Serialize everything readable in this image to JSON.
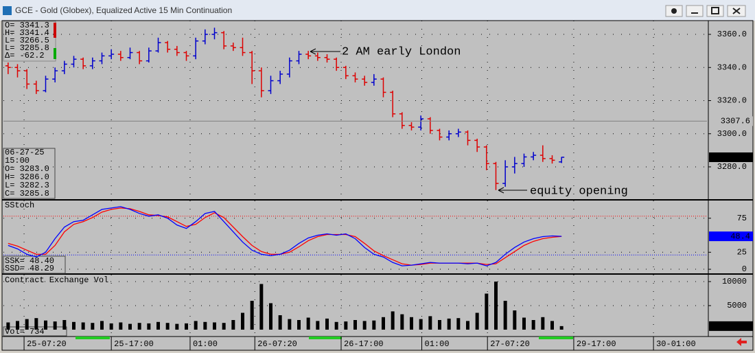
{
  "window": {
    "title": "GCE - Gold (Globex), Equalized Active 15 Min Continuation"
  },
  "time_axis": {
    "xlim": [
      0,
      75
    ],
    "ticks": [
      {
        "value": 2.2,
        "label": "25-07:20"
      },
      {
        "value": 11.5,
        "label": "25-17:00"
      },
      {
        "value": 19.9,
        "label": "01:00"
      },
      {
        "value": 26.8,
        "label": "26-07:20"
      },
      {
        "value": 36.0,
        "label": "26-17:00"
      },
      {
        "value": 44.6,
        "label": "01:00"
      },
      {
        "value": 51.6,
        "label": "27-07:20"
      },
      {
        "value": 60.8,
        "label": "29-17:00"
      },
      {
        "value": 69.3,
        "label": "30-01:00"
      }
    ]
  },
  "chart_data": [
    {
      "type": "ohlc",
      "info": [
        "O= 3341.3",
        "H= 3341.4",
        "L= 3266.5",
        "L= 3285.8",
        "Δ=  -62.2"
      ],
      "bar_readout": [
        "06-27-25",
        "15:00",
        "O=   3283.0",
        "H=   3286.0",
        "L=   3282.3",
        "C=   3285.8"
      ],
      "open": [
        3341,
        3340,
        3338,
        3330,
        3326,
        3333,
        3338,
        3342,
        3345,
        3341,
        3344,
        3347,
        3348,
        3346,
        3349,
        3344,
        3350,
        3355,
        3351,
        3349,
        3347,
        3356,
        3360,
        3361,
        3353,
        3352,
        3349,
        3338,
        3326,
        3332,
        3336,
        3344,
        3348,
        3347,
        3346,
        3345,
        3340,
        3335,
        3333,
        3331,
        3333,
        3325,
        3312,
        3305,
        3304,
        3309,
        3302,
        3298,
        3300,
        3301,
        3296,
        3292,
        3282,
        3270,
        3280,
        3282,
        3286,
        3287,
        3285,
        3283
      ],
      "high": [
        3343,
        3342,
        3339,
        3332,
        3335,
        3340,
        3344,
        3347,
        3346,
        3346,
        3349,
        3351,
        3350,
        3352,
        3350,
        3352,
        3358,
        3356,
        3353,
        3350,
        3358,
        3363,
        3364,
        3362,
        3355,
        3358,
        3350,
        3340,
        3335,
        3338,
        3346,
        3350,
        3350,
        3349,
        3348,
        3346,
        3341,
        3337,
        3335,
        3336,
        3334,
        3326,
        3313,
        3307,
        3311,
        3310,
        3303,
        3302,
        3303,
        3302,
        3297,
        3293,
        3283,
        3284,
        3286,
        3288,
        3289,
        3293,
        3287,
        3286
      ],
      "low": [
        3336,
        3334,
        3327,
        3324,
        3325,
        3331,
        3336,
        3340,
        3339,
        3339,
        3342,
        3345,
        3344,
        3345,
        3342,
        3343,
        3349,
        3349,
        3347,
        3344,
        3345,
        3354,
        3357,
        3351,
        3350,
        3347,
        3330,
        3322,
        3324,
        3330,
        3334,
        3342,
        3345,
        3344,
        3343,
        3338,
        3333,
        3331,
        3329,
        3329,
        3322,
        3310,
        3303,
        3302,
        3302,
        3300,
        3296,
        3296,
        3298,
        3293,
        3289,
        3278,
        3266,
        3268,
        3276,
        3280,
        3284,
        3283,
        3282,
        3282.3
      ],
      "close": [
        3340,
        3338,
        3330,
        3326,
        3333,
        3338,
        3342,
        3345,
        3341,
        3344,
        3347,
        3348,
        3346,
        3349,
        3344,
        3350,
        3355,
        3351,
        3349,
        3347,
        3356,
        3360,
        3361,
        3353,
        3352,
        3349,
        3338,
        3326,
        3332,
        3336,
        3344,
        3348,
        3347,
        3346,
        3345,
        3340,
        3335,
        3333,
        3331,
        3333,
        3325,
        3312,
        3305,
        3304,
        3309,
        3302,
        3298,
        3300,
        3301,
        3296,
        3292,
        3282,
        3270,
        3280,
        3282,
        3286,
        3287,
        3285,
        3284,
        3285.8
      ],
      "up_color": "#0000cc",
      "down_color": "#dd0000",
      "ylim": [
        3260.5,
        3368.3
      ],
      "yticks": [
        {
          "value": 3280,
          "label": "3280.0"
        },
        {
          "value": 3300,
          "label": "3300.0"
        },
        {
          "value": 3320,
          "label": "3320.0"
        },
        {
          "value": 3340,
          "label": "3340.0"
        },
        {
          "value": 3360,
          "label": "3360.0"
        }
      ],
      "reference_line": 3307.6,
      "grid": true,
      "annotations": [
        "2 AM early London",
        "equity opening"
      ]
    },
    {
      "type": "line",
      "title": "SStoch",
      "series": [
        {
          "color": "#0000ff",
          "values": [
            35,
            30,
            22,
            18,
            25,
            45,
            62,
            70,
            72,
            80,
            88,
            90,
            92,
            88,
            82,
            78,
            80,
            75,
            65,
            60,
            70,
            82,
            85,
            70,
            55,
            40,
            28,
            22,
            20,
            22,
            28,
            38,
            46,
            50,
            52,
            50,
            52,
            45,
            32,
            22,
            18,
            10,
            5,
            6,
            8,
            10,
            9,
            9,
            9,
            8,
            9,
            5,
            10,
            22,
            32,
            40,
            45,
            48,
            49,
            48.4
          ]
        },
        {
          "color": "#ff0000",
          "values": [
            38,
            34,
            28,
            22,
            22,
            35,
            55,
            66,
            70,
            76,
            84,
            88,
            90,
            89,
            85,
            80,
            79,
            77,
            70,
            63,
            66,
            76,
            83,
            76,
            62,
            48,
            35,
            26,
            22,
            22,
            25,
            33,
            42,
            48,
            51,
            51,
            51,
            48,
            38,
            27,
            20,
            14,
            8,
            6,
            7,
            9,
            9,
            9,
            9,
            9,
            9,
            7,
            8,
            17,
            26,
            35,
            41,
            45,
            47,
            48.29
          ]
        }
      ],
      "readouts": [
        "SSK=    48.40",
        "SSD=    48.29"
      ],
      "ylim": [
        -6,
        101
      ],
      "yticks": [
        0,
        25,
        75
      ],
      "levels": [
        78,
        21
      ],
      "grid": true
    },
    {
      "type": "bar",
      "title": "Contract Exchange Vol",
      "values": [
        1500,
        1800,
        2200,
        2400,
        1900,
        1700,
        2000,
        1600,
        1500,
        1400,
        1800,
        1300,
        1500,
        1200,
        1400,
        1300,
        1600,
        1400,
        1200,
        1300,
        1800,
        1600,
        1500,
        1400,
        2000,
        3500,
        6000,
        9500,
        5500,
        3000,
        2200,
        2000,
        2500,
        1800,
        2300,
        1600,
        1700,
        2000,
        1800,
        1900,
        2600,
        3800,
        3200,
        2600,
        2200,
        2800,
        2000,
        2300,
        2400,
        1800,
        3500,
        7500,
        10000,
        6000,
        4000,
        2500,
        2000,
        2600,
        1800,
        734
      ],
      "color": "#000000",
      "readout": "Vol=    734",
      "ylim": [
        -1430,
        11430
      ],
      "yticks": [
        5000,
        10000
      ],
      "grid": true
    }
  ]
}
